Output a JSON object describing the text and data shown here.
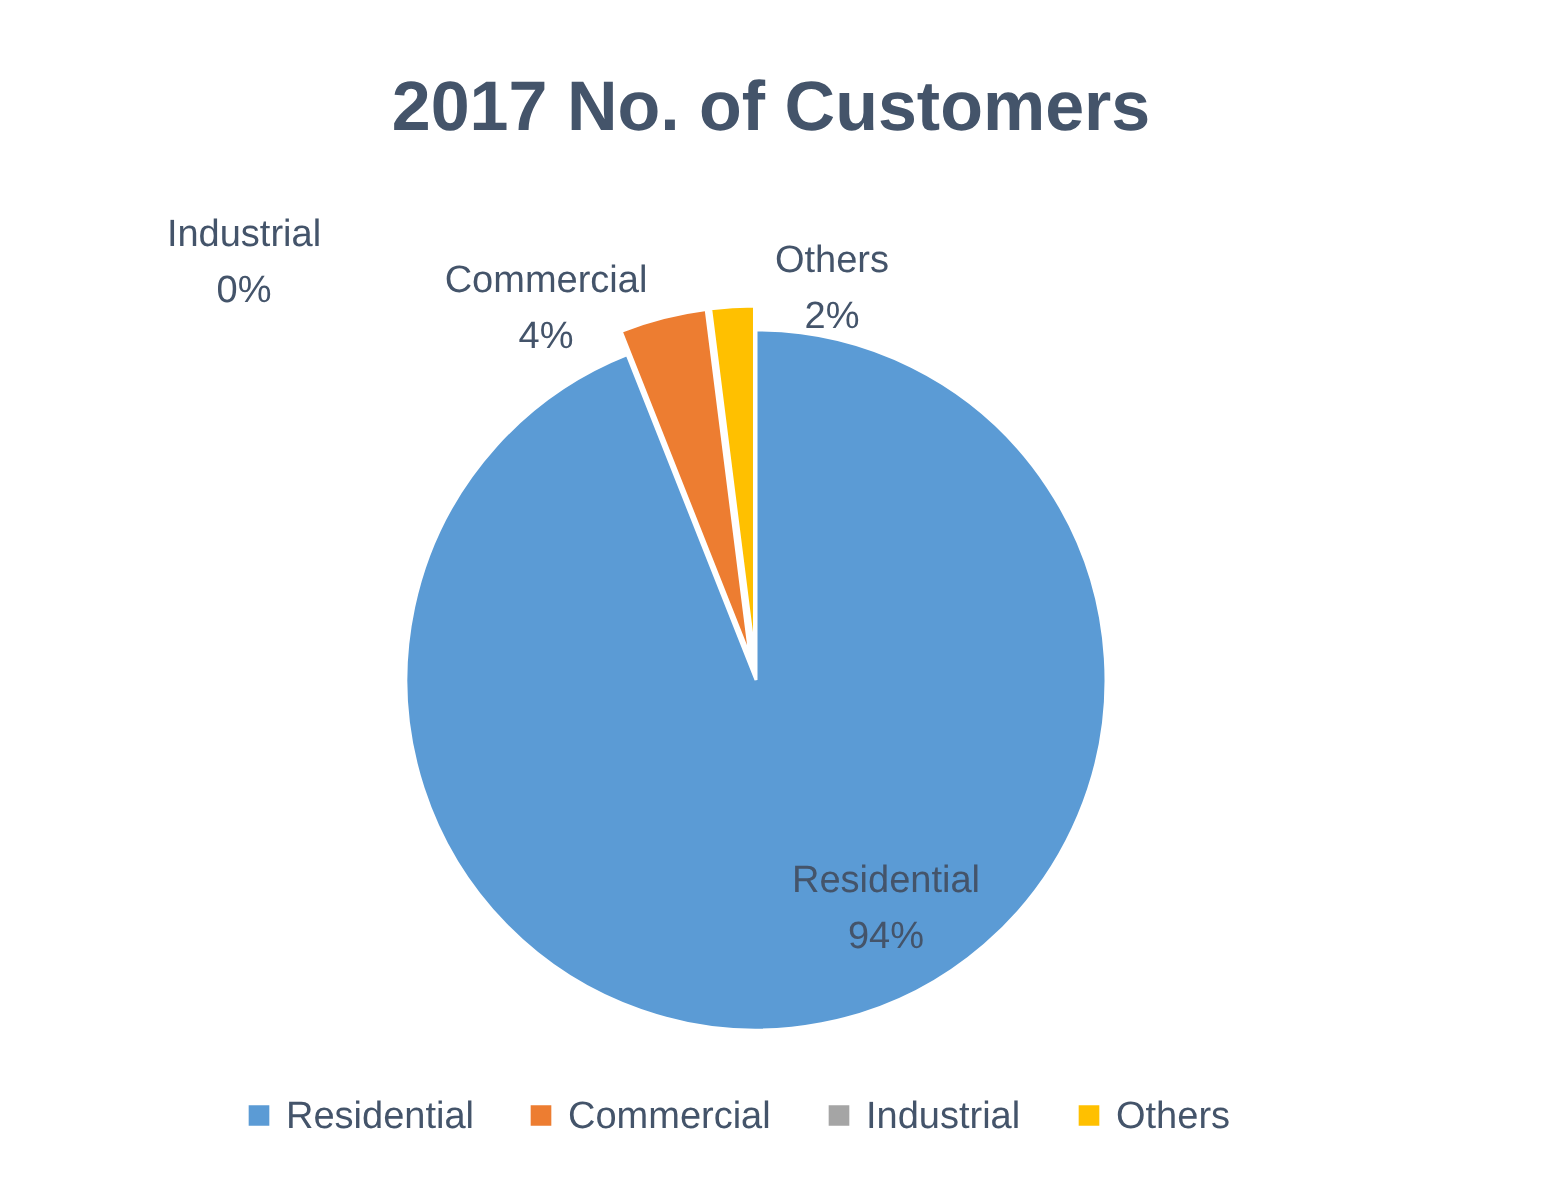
{
  "chart_data": {
    "type": "pie",
    "title": "2017 No. of Customers",
    "categories": [
      "Residential",
      "Commercial",
      "Industrial",
      "Others"
    ],
    "values": [
      94,
      4,
      0,
      2
    ],
    "value_labels": [
      "94%",
      "4%",
      "0%",
      "2%"
    ],
    "colors": [
      "#5b9bd5",
      "#ed7d31",
      "#a5a5a5",
      "#ffc000"
    ],
    "legend": "bottom"
  }
}
